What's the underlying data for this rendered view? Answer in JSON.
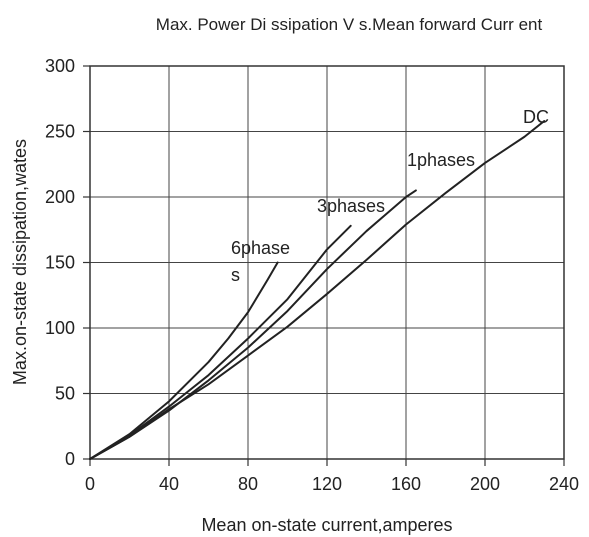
{
  "chart_data": {
    "type": "line",
    "title": "Max. Power Di ssipation V s.Mean forward Curr ent",
    "xlabel": "Mean on-state current,amperes",
    "ylabel": "Max.on-state dissipation,wates",
    "xlim": [
      0,
      240
    ],
    "ylim": [
      0,
      300
    ],
    "x_ticks": [
      0,
      40,
      80,
      120,
      160,
      200,
      240
    ],
    "y_ticks": [
      0,
      50,
      100,
      150,
      200,
      250,
      300
    ],
    "grid": true,
    "series": [
      {
        "name": "DC",
        "label_lines": [
          "DC"
        ],
        "points": [
          [
            0,
            0
          ],
          [
            20,
            17
          ],
          [
            40,
            38
          ],
          [
            60,
            57
          ],
          [
            80,
            79
          ],
          [
            100,
            101
          ],
          [
            120,
            126
          ],
          [
            140,
            152
          ],
          [
            160,
            179
          ],
          [
            180,
            203
          ],
          [
            200,
            226
          ],
          [
            220,
            246
          ],
          [
            230,
            258
          ]
        ]
      },
      {
        "name": "1phases",
        "label_lines": [
          "1phases"
        ],
        "points": [
          [
            0,
            0
          ],
          [
            20,
            17
          ],
          [
            40,
            37
          ],
          [
            60,
            60
          ],
          [
            80,
            85
          ],
          [
            100,
            113
          ],
          [
            120,
            145
          ],
          [
            140,
            174
          ],
          [
            160,
            200
          ],
          [
            165,
            205
          ]
        ]
      },
      {
        "name": "3phases",
        "label_lines": [
          "3phases"
        ],
        "points": [
          [
            0,
            0
          ],
          [
            20,
            18
          ],
          [
            40,
            40
          ],
          [
            60,
            64
          ],
          [
            80,
            92
          ],
          [
            100,
            122
          ],
          [
            120,
            160
          ],
          [
            132,
            178
          ]
        ]
      },
      {
        "name": "6phases",
        "label_lines": [
          "6phase",
          "s"
        ],
        "points": [
          [
            0,
            0
          ],
          [
            20,
            19
          ],
          [
            40,
            44
          ],
          [
            60,
            74
          ],
          [
            70,
            92
          ],
          [
            80,
            112
          ],
          [
            90,
            137
          ],
          [
            95,
            150
          ]
        ]
      }
    ]
  },
  "colors": {
    "line": "#222222",
    "grid": "#444444",
    "axis": "#333333"
  }
}
